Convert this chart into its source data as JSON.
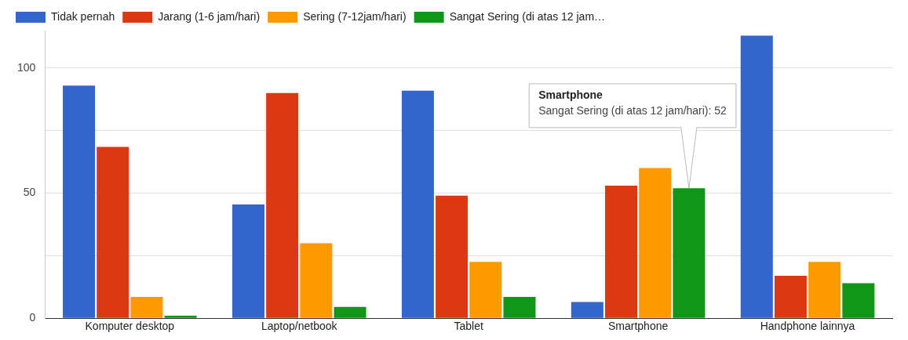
{
  "chart_data": {
    "type": "bar",
    "categories": [
      "Komputer desktop",
      "Laptop/netbook",
      "Tablet",
      "Smartphone",
      "Handphone lainnya"
    ],
    "series": [
      {
        "name": "Tidak pernah",
        "color": "#3366cc",
        "values": [
          93,
          45.5,
          91,
          6.5,
          113
        ]
      },
      {
        "name": "Jarang (1-6 jam/hari)",
        "color": "#dc3912",
        "values": [
          68.5,
          90,
          49,
          53,
          17
        ]
      },
      {
        "name": "Sering (7-12jam/hari)",
        "color": "#ff9900",
        "values": [
          8.5,
          30,
          22.5,
          60,
          22.5
        ]
      },
      {
        "name": "Sangat Sering (di atas 12 jam…",
        "color": "#109618",
        "values": [
          1,
          4.5,
          8.5,
          52,
          14
        ]
      }
    ],
    "ylim": [
      0,
      115
    ],
    "yticks": [
      0,
      {
        "value": 25,
        "label": null
      },
      50,
      {
        "value": 75,
        "label": null
      },
      100
    ],
    "grid": "y",
    "legend": "top left",
    "annotations": [
      "Smartphone",
      "Sangat Sering (di atas 12 jam/hari): 52"
    ]
  }
}
